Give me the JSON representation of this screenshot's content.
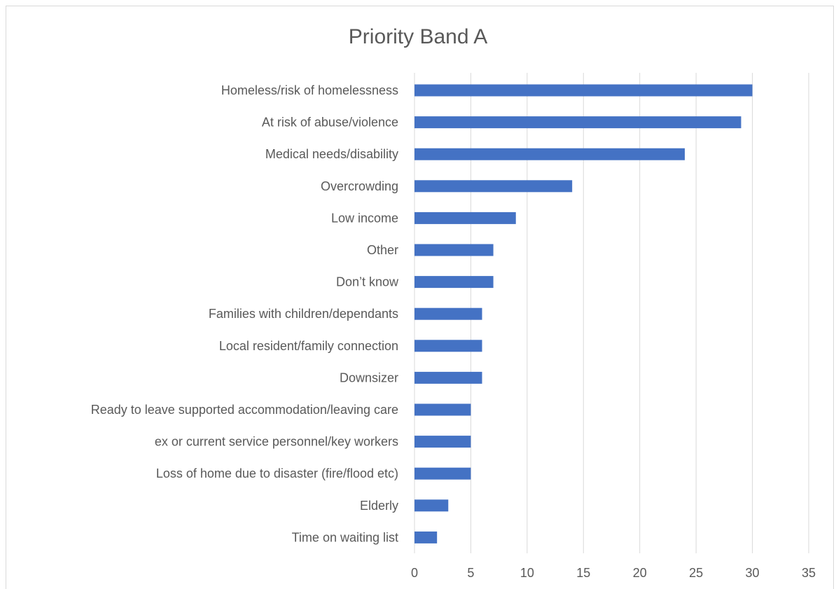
{
  "chart_data": {
    "type": "bar",
    "orientation": "horizontal",
    "title": "Priority Band A",
    "xlabel": "",
    "ylabel": "",
    "categories": [
      "Homeless/risk of homelessness",
      "At risk of abuse/violence",
      "Medical needs/disability",
      "Overcrowding",
      "Low income",
      "Other",
      "Don’t know",
      "Families with children/dependants",
      "Local resident/family connection",
      "Downsizer",
      "Ready to leave supported accommodation/leaving care",
      "ex or current service personnel/key workers",
      "Loss of home due to disaster (fire/flood etc)",
      "Elderly",
      "Time on waiting list"
    ],
    "values": [
      30,
      29,
      24,
      14,
      9,
      7,
      7,
      6,
      6,
      6,
      5,
      5,
      5,
      3,
      2
    ],
    "xlim": [
      0,
      35
    ],
    "xticks": [
      "0",
      "5",
      "10",
      "15",
      "20",
      "25",
      "30",
      "35"
    ],
    "grid": "vertical",
    "legend": "none",
    "bar_color": "#4472C4",
    "grid_color": "#d9d9d9"
  }
}
